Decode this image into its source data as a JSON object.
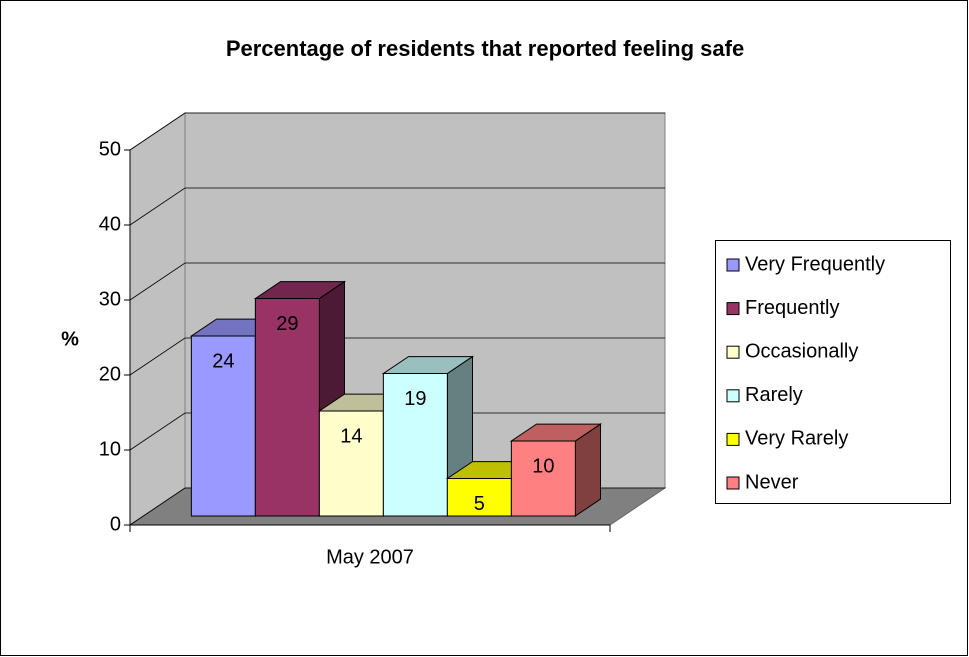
{
  "chart_data": {
    "type": "bar3d",
    "title": "Percentage of residents that reported feeling safe",
    "categories": [
      "May 2007"
    ],
    "ylabel": "%",
    "series": [
      {
        "name": "Very Frequently",
        "color": "#9999ff",
        "values": [
          24
        ]
      },
      {
        "name": "Frequently",
        "color": "#993366",
        "values": [
          29
        ]
      },
      {
        "name": "Occasionally",
        "color": "#ffffcc",
        "values": [
          14
        ]
      },
      {
        "name": "Rarely",
        "color": "#ccffff",
        "values": [
          19
        ]
      },
      {
        "name": "Very Rarely",
        "color": "#ffff00",
        "values": [
          5
        ]
      },
      {
        "name": "Never",
        "color": "#ff8080",
        "values": [
          10
        ]
      }
    ],
    "ylim": [
      0,
      50
    ],
    "yticks": [
      0,
      10,
      20,
      30,
      40,
      50
    ],
    "grid": true,
    "legend": "right"
  }
}
